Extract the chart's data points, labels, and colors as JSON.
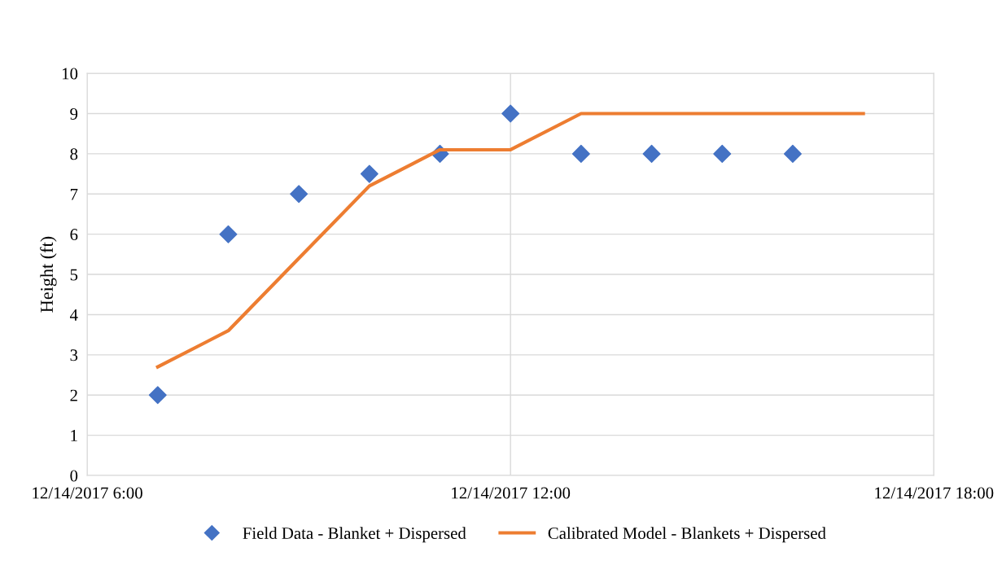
{
  "chart_data": {
    "type": "line",
    "ylabel": "Height (ft)",
    "x": [
      "2017-12-14T07:00",
      "2017-12-14T08:00",
      "2017-12-14T09:00",
      "2017-12-14T10:00",
      "2017-12-14T11:00",
      "2017-12-14T12:00",
      "2017-12-14T13:00",
      "2017-12-14T14:00",
      "2017-12-14T15:00",
      "2017-12-14T16:00",
      "2017-12-14T17:00"
    ],
    "series": [
      {
        "name": "Field Data - Blanket + Dispersed",
        "type": "scatter",
        "marker": "diamond",
        "color": "#4472c4",
        "x": [
          "2017-12-14T07:00",
          "2017-12-14T08:00",
          "2017-12-14T09:00",
          "2017-12-14T10:00",
          "2017-12-14T11:00",
          "2017-12-14T12:00",
          "2017-12-14T13:00",
          "2017-12-14T14:00",
          "2017-12-14T15:00",
          "2017-12-14T16:00"
        ],
        "values": [
          2,
          6,
          7,
          7.5,
          8,
          9,
          8,
          8,
          8,
          8
        ]
      },
      {
        "name": "Calibrated Model - Blankets + Dispersed",
        "marker": "none",
        "line_style": "solid",
        "color": "#ed7d31",
        "values": [
          2.7,
          3.6,
          5.4,
          7.2,
          8.1,
          8.1,
          9,
          9,
          9,
          9,
          9
        ]
      }
    ],
    "xlim": [
      "2017-12-14T06:00",
      "2017-12-14T18:00"
    ],
    "xticks": [
      {
        "value": "2017-12-14T06:00",
        "label": "12/14/2017 6:00"
      },
      {
        "value": "2017-12-14T12:00",
        "label": "12/14/2017 12:00"
      },
      {
        "value": "2017-12-14T18:00",
        "label": "12/14/2017 18:00"
      }
    ],
    "ylim": [
      0,
      10
    ],
    "yticks": [
      0,
      1,
      2,
      3,
      4,
      5,
      6,
      7,
      8,
      9,
      10
    ],
    "grid": true,
    "legend": "bottom"
  }
}
